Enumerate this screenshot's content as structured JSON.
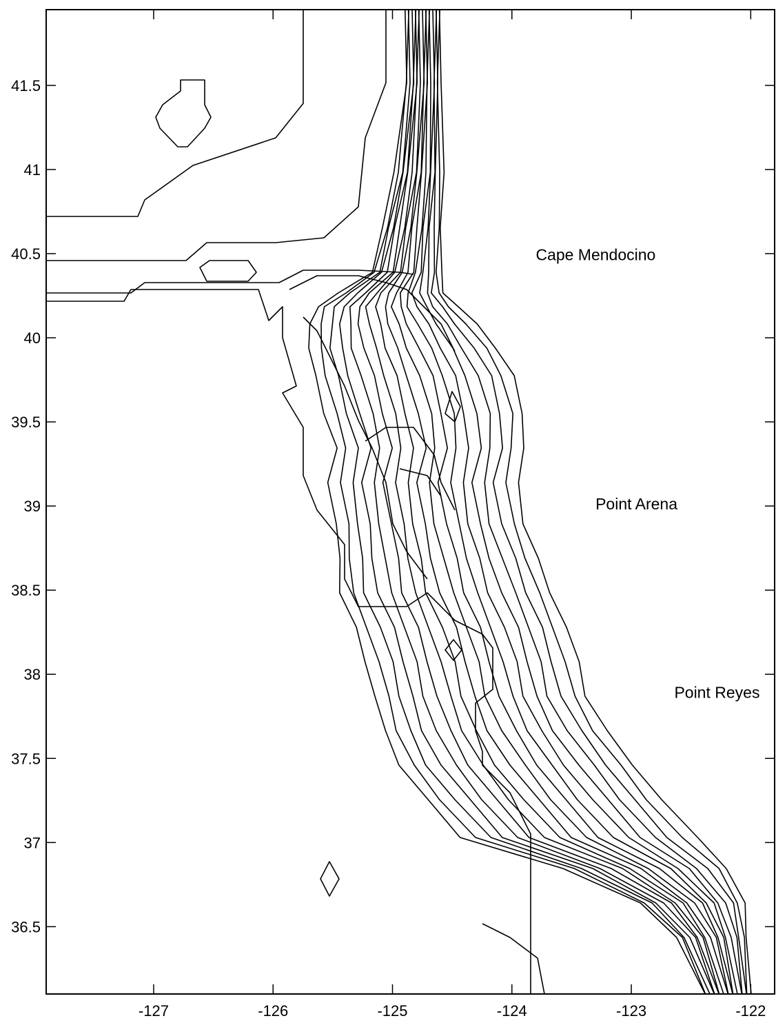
{
  "map": {
    "x_ticks": [
      "-127",
      "-126",
      "-125",
      "-124",
      "-123",
      "-122"
    ],
    "y_ticks": [
      "41.5",
      "41",
      "40.5",
      "40",
      "39.5",
      "39",
      "38.5",
      "38",
      "37.5",
      "37",
      "36.5"
    ],
    "x_range": [
      -127.9,
      -121.8
    ],
    "y_range": [
      36.1,
      41.95
    ],
    "labels": [
      {
        "text": "Cape Mendocino",
        "lon": -123.8,
        "lat": 40.46
      },
      {
        "text": "Point Arena",
        "lon": -123.3,
        "lat": 38.98
      },
      {
        "text": "Point Reyes",
        "lon": -122.64,
        "lat": 37.86
      }
    ],
    "contour_interval_lines": 18
  }
}
